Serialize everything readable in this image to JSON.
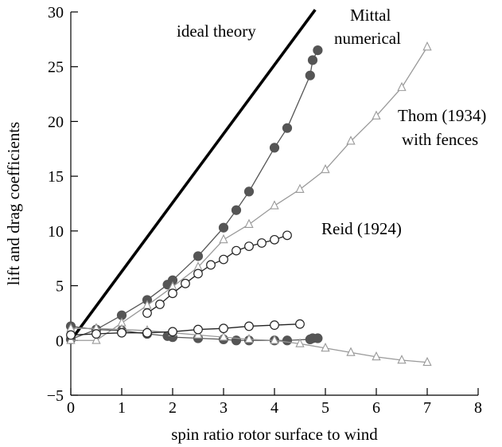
{
  "chart_data": {
    "type": "line",
    "title": "",
    "xlabel": "spin ratio rotor surface to wind",
    "ylabel": "lift and drag coefficients",
    "xlim": [
      0,
      8
    ],
    "ylim": [
      -5,
      30
    ],
    "xticks": [
      "0",
      "1",
      "2",
      "3",
      "4",
      "5",
      "6",
      "7",
      "8"
    ],
    "yticks": [
      "−5",
      "0",
      "5",
      "10",
      "15",
      "20",
      "25",
      "30"
    ],
    "grid": false,
    "legend": "none",
    "annotations": [
      {
        "id": "ideal",
        "text": "ideal theory"
      },
      {
        "id": "mittal1",
        "text": "Mittal"
      },
      {
        "id": "mittal2",
        "text": "numerical"
      },
      {
        "id": "thom1",
        "text": "Thom (1934)"
      },
      {
        "id": "thom2",
        "text": "with fences"
      },
      {
        "id": "reid",
        "text": "Reid (1924)"
      }
    ],
    "series": [
      {
        "name": "ideal theory",
        "style": "thick-line",
        "color": "#000000",
        "x": [
          0,
          4.8
        ],
        "y": [
          0,
          30.2
        ]
      },
      {
        "name": "Mittal numerical",
        "style": "filled-circle",
        "color": "#555555",
        "x": [
          0,
          0.5,
          1.0,
          1.5,
          1.9,
          2.0,
          2.5,
          3.0,
          3.25,
          3.5,
          4.0,
          4.25,
          4.7,
          4.75,
          4.85
        ],
        "y": [
          0.1,
          1.0,
          2.3,
          3.7,
          5.1,
          5.5,
          7.7,
          10.3,
          11.9,
          13.6,
          17.6,
          19.4,
          24.2,
          25.6,
          26.5
        ]
      },
      {
        "name": "Thom (1934) with fences",
        "style": "open-triangle",
        "color": "#999999",
        "x": [
          0,
          0.5,
          1.0,
          1.5,
          2.0,
          2.5,
          3.0,
          3.5,
          4.0,
          4.5,
          5.0,
          5.5,
          6.0,
          6.5,
          7.0
        ],
        "y": [
          0,
          0,
          1.6,
          3.2,
          4.9,
          6.7,
          9.2,
          10.6,
          12.3,
          13.8,
          15.6,
          18.2,
          20.5,
          23.1,
          26.8
        ]
      },
      {
        "name": "Reid (1924)",
        "style": "open-circle",
        "color": "#222222",
        "x": [
          1.5,
          1.75,
          2.0,
          2.25,
          2.5,
          2.75,
          3.0,
          3.25,
          3.5,
          3.75,
          4.0,
          4.25
        ],
        "y": [
          2.5,
          3.3,
          4.3,
          5.2,
          6.1,
          6.9,
          7.4,
          8.2,
          8.6,
          8.9,
          9.2,
          9.6
        ]
      },
      {
        "name": "Mittal numerical (drag)",
        "style": "filled-circle",
        "color": "#555555",
        "x": [
          0,
          0.5,
          1.0,
          1.5,
          1.9,
          2.0,
          2.5,
          3.0,
          3.25,
          3.5,
          4.0,
          4.25,
          4.7,
          4.75,
          4.85
        ],
        "y": [
          1.3,
          1.0,
          0.9,
          0.6,
          0.4,
          0.3,
          0.2,
          0.1,
          0.0,
          0.0,
          0.0,
          0.0,
          0.1,
          0.2,
          0.2
        ]
      },
      {
        "name": "Thom (1934) with fences (drag)",
        "style": "open-triangle",
        "color": "#999999",
        "x": [
          0,
          0.5,
          1.0,
          1.5,
          2.0,
          2.5,
          3.0,
          3.5,
          4.0,
          4.5,
          5.0,
          5.5,
          6.0,
          6.5,
          7.0
        ],
        "y": [
          1.1,
          1.1,
          1.0,
          0.9,
          0.7,
          0.5,
          0.3,
          0.1,
          0.0,
          -0.3,
          -0.7,
          -1.1,
          -1.5,
          -1.8,
          -2.0
        ]
      },
      {
        "name": "Reid (1924) (drag)",
        "style": "open-circle",
        "color": "#222222",
        "x": [
          0,
          0.5,
          1.0,
          1.5,
          2.0,
          2.5,
          3.0,
          3.5,
          4.0,
          4.5
        ],
        "y": [
          0.5,
          0.6,
          0.7,
          0.7,
          0.8,
          1.0,
          1.1,
          1.3,
          1.4,
          1.5
        ]
      }
    ]
  }
}
